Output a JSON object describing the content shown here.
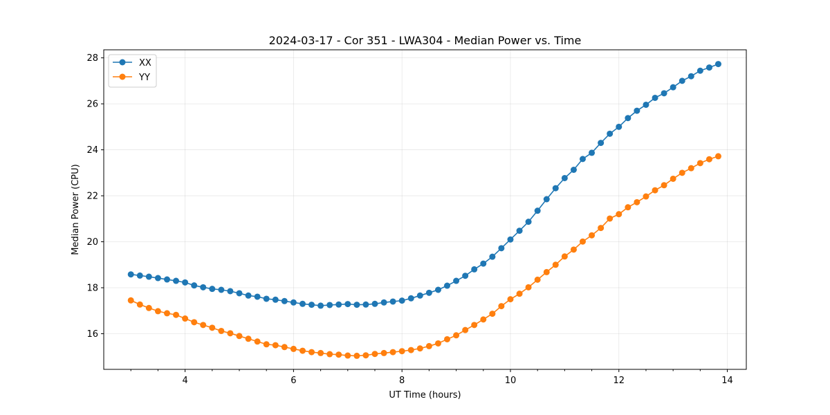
{
  "chart_data": {
    "type": "line",
    "title": "2024-03-17 - Cor 351 - LWA304 - Median Power vs. Time",
    "xlabel": "UT Time (hours)",
    "ylabel": "Median Power (CPU)",
    "xlim": [
      2.5,
      14.35
    ],
    "ylim": [
      14.45,
      28.35
    ],
    "xticks": [
      4,
      6,
      8,
      10,
      12,
      14
    ],
    "xtick_labels": [
      "4",
      "6",
      "8",
      "10",
      "12",
      "14"
    ],
    "yticks": [
      16,
      18,
      20,
      22,
      24,
      26,
      28
    ],
    "ytick_labels": [
      "16",
      "18",
      "20",
      "22",
      "24",
      "26",
      "28"
    ],
    "grid": true,
    "legend_position": "upper-left",
    "series": [
      {
        "name": "XX",
        "color": "#1f77b4",
        "x": [
          3.0,
          3.167,
          3.333,
          3.5,
          3.667,
          3.833,
          4.0,
          4.167,
          4.333,
          4.5,
          4.667,
          4.833,
          5.0,
          5.167,
          5.333,
          5.5,
          5.667,
          5.833,
          6.0,
          6.167,
          6.333,
          6.5,
          6.667,
          6.833,
          7.0,
          7.167,
          7.333,
          7.5,
          7.667,
          7.833,
          8.0,
          8.167,
          8.333,
          8.5,
          8.667,
          8.833,
          9.0,
          9.167,
          9.333,
          9.5,
          9.667,
          9.833,
          10.0,
          10.167,
          10.333,
          10.5,
          10.667,
          10.833,
          11.0,
          11.167,
          11.333,
          11.5,
          11.667,
          11.833,
          12.0,
          12.167,
          12.333,
          12.5,
          12.667,
          12.833,
          13.0,
          13.167,
          13.333,
          13.5,
          13.667,
          13.833
        ],
        "y": [
          18.58,
          18.53,
          18.48,
          18.42,
          18.36,
          18.3,
          18.23,
          18.1,
          18.02,
          17.95,
          17.91,
          17.85,
          17.76,
          17.66,
          17.61,
          17.52,
          17.48,
          17.42,
          17.36,
          17.3,
          17.26,
          17.22,
          17.25,
          17.27,
          17.29,
          17.26,
          17.27,
          17.3,
          17.36,
          17.4,
          17.44,
          17.54,
          17.66,
          17.78,
          17.91,
          18.09,
          18.3,
          18.52,
          18.8,
          19.05,
          19.35,
          19.72,
          20.1,
          20.48,
          20.87,
          21.35,
          21.85,
          22.33,
          22.77,
          23.13,
          23.6,
          23.87,
          24.3,
          24.7,
          25.0,
          25.38,
          25.7,
          25.96,
          26.26,
          26.46,
          26.72,
          27.0,
          27.2,
          27.44,
          27.58,
          27.73
        ]
      },
      {
        "name": "YY",
        "color": "#ff7f0e",
        "x": [
          3.0,
          3.167,
          3.333,
          3.5,
          3.667,
          3.833,
          4.0,
          4.167,
          4.333,
          4.5,
          4.667,
          4.833,
          5.0,
          5.167,
          5.333,
          5.5,
          5.667,
          5.833,
          6.0,
          6.167,
          6.333,
          6.5,
          6.667,
          6.833,
          7.0,
          7.167,
          7.333,
          7.5,
          7.667,
          7.833,
          8.0,
          8.167,
          8.333,
          8.5,
          8.667,
          8.833,
          9.0,
          9.167,
          9.333,
          9.5,
          9.667,
          9.833,
          10.0,
          10.167,
          10.333,
          10.5,
          10.667,
          10.833,
          11.0,
          11.167,
          11.333,
          11.5,
          11.667,
          11.833,
          12.0,
          12.167,
          12.333,
          12.5,
          12.667,
          12.833,
          13.0,
          13.167,
          13.333,
          13.5,
          13.667,
          13.833
        ],
        "y": [
          17.45,
          17.27,
          17.12,
          16.98,
          16.89,
          16.82,
          16.66,
          16.5,
          16.38,
          16.26,
          16.12,
          16.02,
          15.9,
          15.78,
          15.66,
          15.54,
          15.5,
          15.42,
          15.34,
          15.26,
          15.2,
          15.16,
          15.11,
          15.09,
          15.05,
          15.04,
          15.06,
          15.12,
          15.16,
          15.2,
          15.24,
          15.29,
          15.36,
          15.46,
          15.58,
          15.76,
          15.93,
          16.16,
          16.38,
          16.62,
          16.87,
          17.2,
          17.5,
          17.74,
          18.02,
          18.35,
          18.68,
          19.0,
          19.36,
          19.66,
          20.01,
          20.28,
          20.6,
          21.01,
          21.2,
          21.5,
          21.72,
          21.97,
          22.24,
          22.46,
          22.74,
          23.0,
          23.2,
          23.42,
          23.59,
          23.72
        ]
      }
    ]
  }
}
